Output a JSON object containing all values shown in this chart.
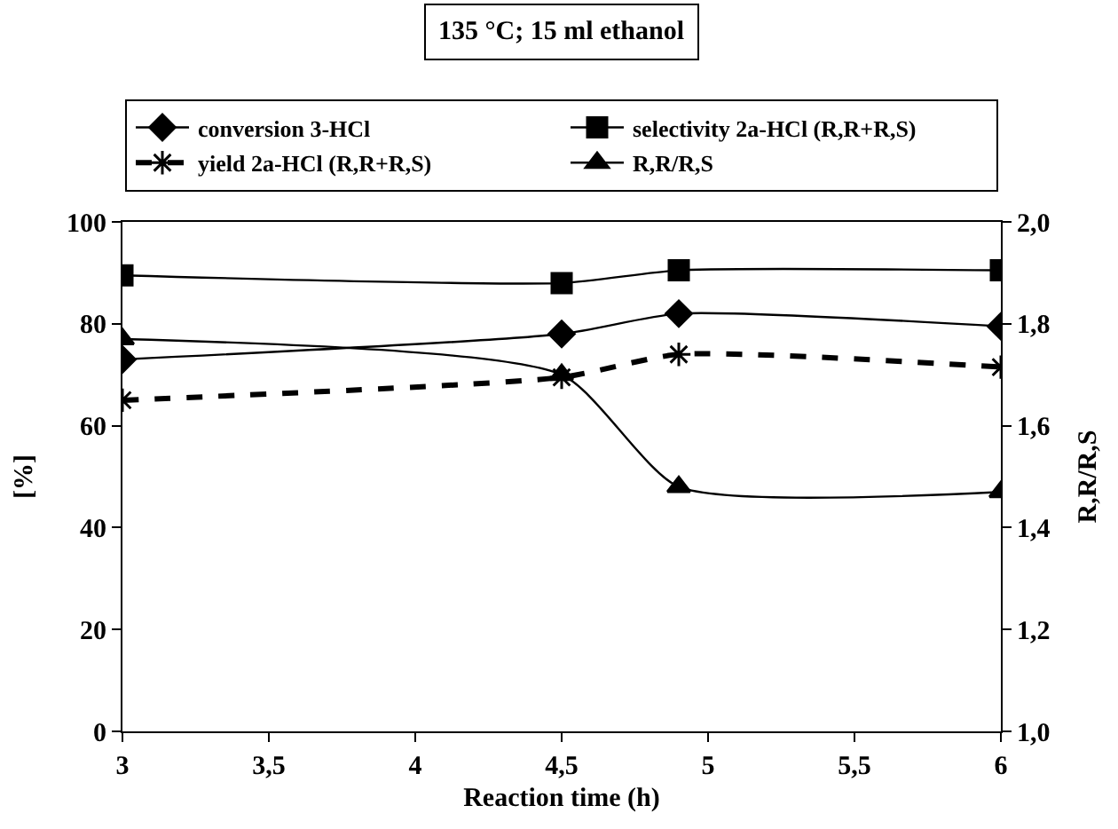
{
  "chart_data": {
    "type": "line",
    "title": "135 °C; 15 ml ethanol",
    "xlabel": "Reaction time (h)",
    "ylabel": "[%]",
    "y2label": "R,R/R,S",
    "x": [
      3,
      4.5,
      4.9,
      6
    ],
    "series": [
      {
        "name": "conversion 3-HCl",
        "color": "#000000",
        "marker": "diamond",
        "line_style": "solid",
        "values": [
          73,
          78,
          82,
          79.5
        ]
      },
      {
        "name": "selectivity 2a-HCl (R,R+R,S)",
        "color": "#000000",
        "marker": "square",
        "line_style": "solid",
        "values": [
          89.5,
          88,
          90.5,
          90.5
        ]
      },
      {
        "name": "yield 2a-HCl (R,R+R,S)",
        "color": "#000000",
        "marker": "cross",
        "line_style": "dashed",
        "values": [
          65,
          69.5,
          74,
          71.5
        ]
      },
      {
        "name": "R,R/R,S",
        "color": "#000000",
        "marker": "triangle",
        "line_style": "solid",
        "axis": "y2",
        "values": [
          1.77,
          1.7,
          1.48,
          1.47
        ]
      }
    ],
    "xlim": [
      3,
      6
    ],
    "xticks": [
      3,
      {
        "value": 3.5,
        "label": "3,5"
      },
      4,
      {
        "value": 4.5,
        "label": "4,5"
      },
      5,
      {
        "value": 5.5,
        "label": "5,5"
      },
      6
    ],
    "ylim": [
      0,
      100
    ],
    "yticks": [
      0,
      20,
      40,
      60,
      80,
      100
    ],
    "y2lim": [
      1.0,
      2.0
    ],
    "y2ticks": [
      {
        "value": 1.0,
        "label": "1,0"
      },
      {
        "value": 1.2,
        "label": "1,2"
      },
      {
        "value": 1.4,
        "label": "1,4"
      },
      {
        "value": 1.6,
        "label": "1,6"
      },
      {
        "value": 1.8,
        "label": "1,8"
      },
      {
        "value": 2.0,
        "label": "2,0"
      }
    ],
    "legend": "top"
  }
}
